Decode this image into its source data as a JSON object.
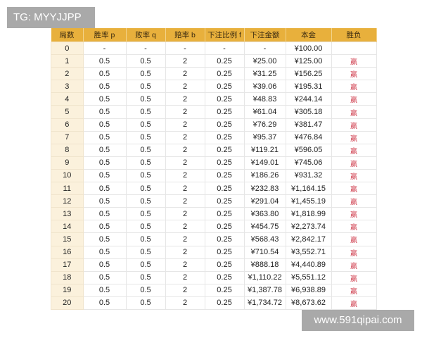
{
  "watermark_top": "TG: MYYJJPP",
  "watermark_bottom": "www.591qipai.com",
  "colors": {
    "header": "#e8b03c",
    "index_column": "#fbf1dc",
    "win": "#d04050"
  },
  "table": {
    "headers": [
      "局数",
      "胜率 p",
      "败率 q",
      "赔率 b",
      "下注比例 f",
      "下注金额",
      "本金",
      "胜负"
    ],
    "rows": [
      [
        "0",
        "-",
        "-",
        "-",
        "-",
        "-",
        "¥100.00",
        ""
      ],
      [
        "1",
        "0.5",
        "0.5",
        "2",
        "0.25",
        "¥25.00",
        "¥125.00",
        "赢"
      ],
      [
        "2",
        "0.5",
        "0.5",
        "2",
        "0.25",
        "¥31.25",
        "¥156.25",
        "赢"
      ],
      [
        "3",
        "0.5",
        "0.5",
        "2",
        "0.25",
        "¥39.06",
        "¥195.31",
        "赢"
      ],
      [
        "4",
        "0.5",
        "0.5",
        "2",
        "0.25",
        "¥48.83",
        "¥244.14",
        "赢"
      ],
      [
        "5",
        "0.5",
        "0.5",
        "2",
        "0.25",
        "¥61.04",
        "¥305.18",
        "赢"
      ],
      [
        "6",
        "0.5",
        "0.5",
        "2",
        "0.25",
        "¥76.29",
        "¥381.47",
        "赢"
      ],
      [
        "7",
        "0.5",
        "0.5",
        "2",
        "0.25",
        "¥95.37",
        "¥476.84",
        "赢"
      ],
      [
        "8",
        "0.5",
        "0.5",
        "2",
        "0.25",
        "¥119.21",
        "¥596.05",
        "赢"
      ],
      [
        "9",
        "0.5",
        "0.5",
        "2",
        "0.25",
        "¥149.01",
        "¥745.06",
        "赢"
      ],
      [
        "10",
        "0.5",
        "0.5",
        "2",
        "0.25",
        "¥186.26",
        "¥931.32",
        "赢"
      ],
      [
        "11",
        "0.5",
        "0.5",
        "2",
        "0.25",
        "¥232.83",
        "¥1,164.15",
        "赢"
      ],
      [
        "12",
        "0.5",
        "0.5",
        "2",
        "0.25",
        "¥291.04",
        "¥1,455.19",
        "赢"
      ],
      [
        "13",
        "0.5",
        "0.5",
        "2",
        "0.25",
        "¥363.80",
        "¥1,818.99",
        "赢"
      ],
      [
        "14",
        "0.5",
        "0.5",
        "2",
        "0.25",
        "¥454.75",
        "¥2,273.74",
        "赢"
      ],
      [
        "15",
        "0.5",
        "0.5",
        "2",
        "0.25",
        "¥568.43",
        "¥2,842.17",
        "赢"
      ],
      [
        "16",
        "0.5",
        "0.5",
        "2",
        "0.25",
        "¥710.54",
        "¥3,552.71",
        "赢"
      ],
      [
        "17",
        "0.5",
        "0.5",
        "2",
        "0.25",
        "¥888.18",
        "¥4,440.89",
        "赢"
      ],
      [
        "18",
        "0.5",
        "0.5",
        "2",
        "0.25",
        "¥1,110.22",
        "¥5,551.12",
        "赢"
      ],
      [
        "19",
        "0.5",
        "0.5",
        "2",
        "0.25",
        "¥1,387.78",
        "¥6,938.89",
        "赢"
      ],
      [
        "20",
        "0.5",
        "0.5",
        "2",
        "0.25",
        "¥1,734.72",
        "¥8,673.62",
        "赢"
      ]
    ]
  }
}
